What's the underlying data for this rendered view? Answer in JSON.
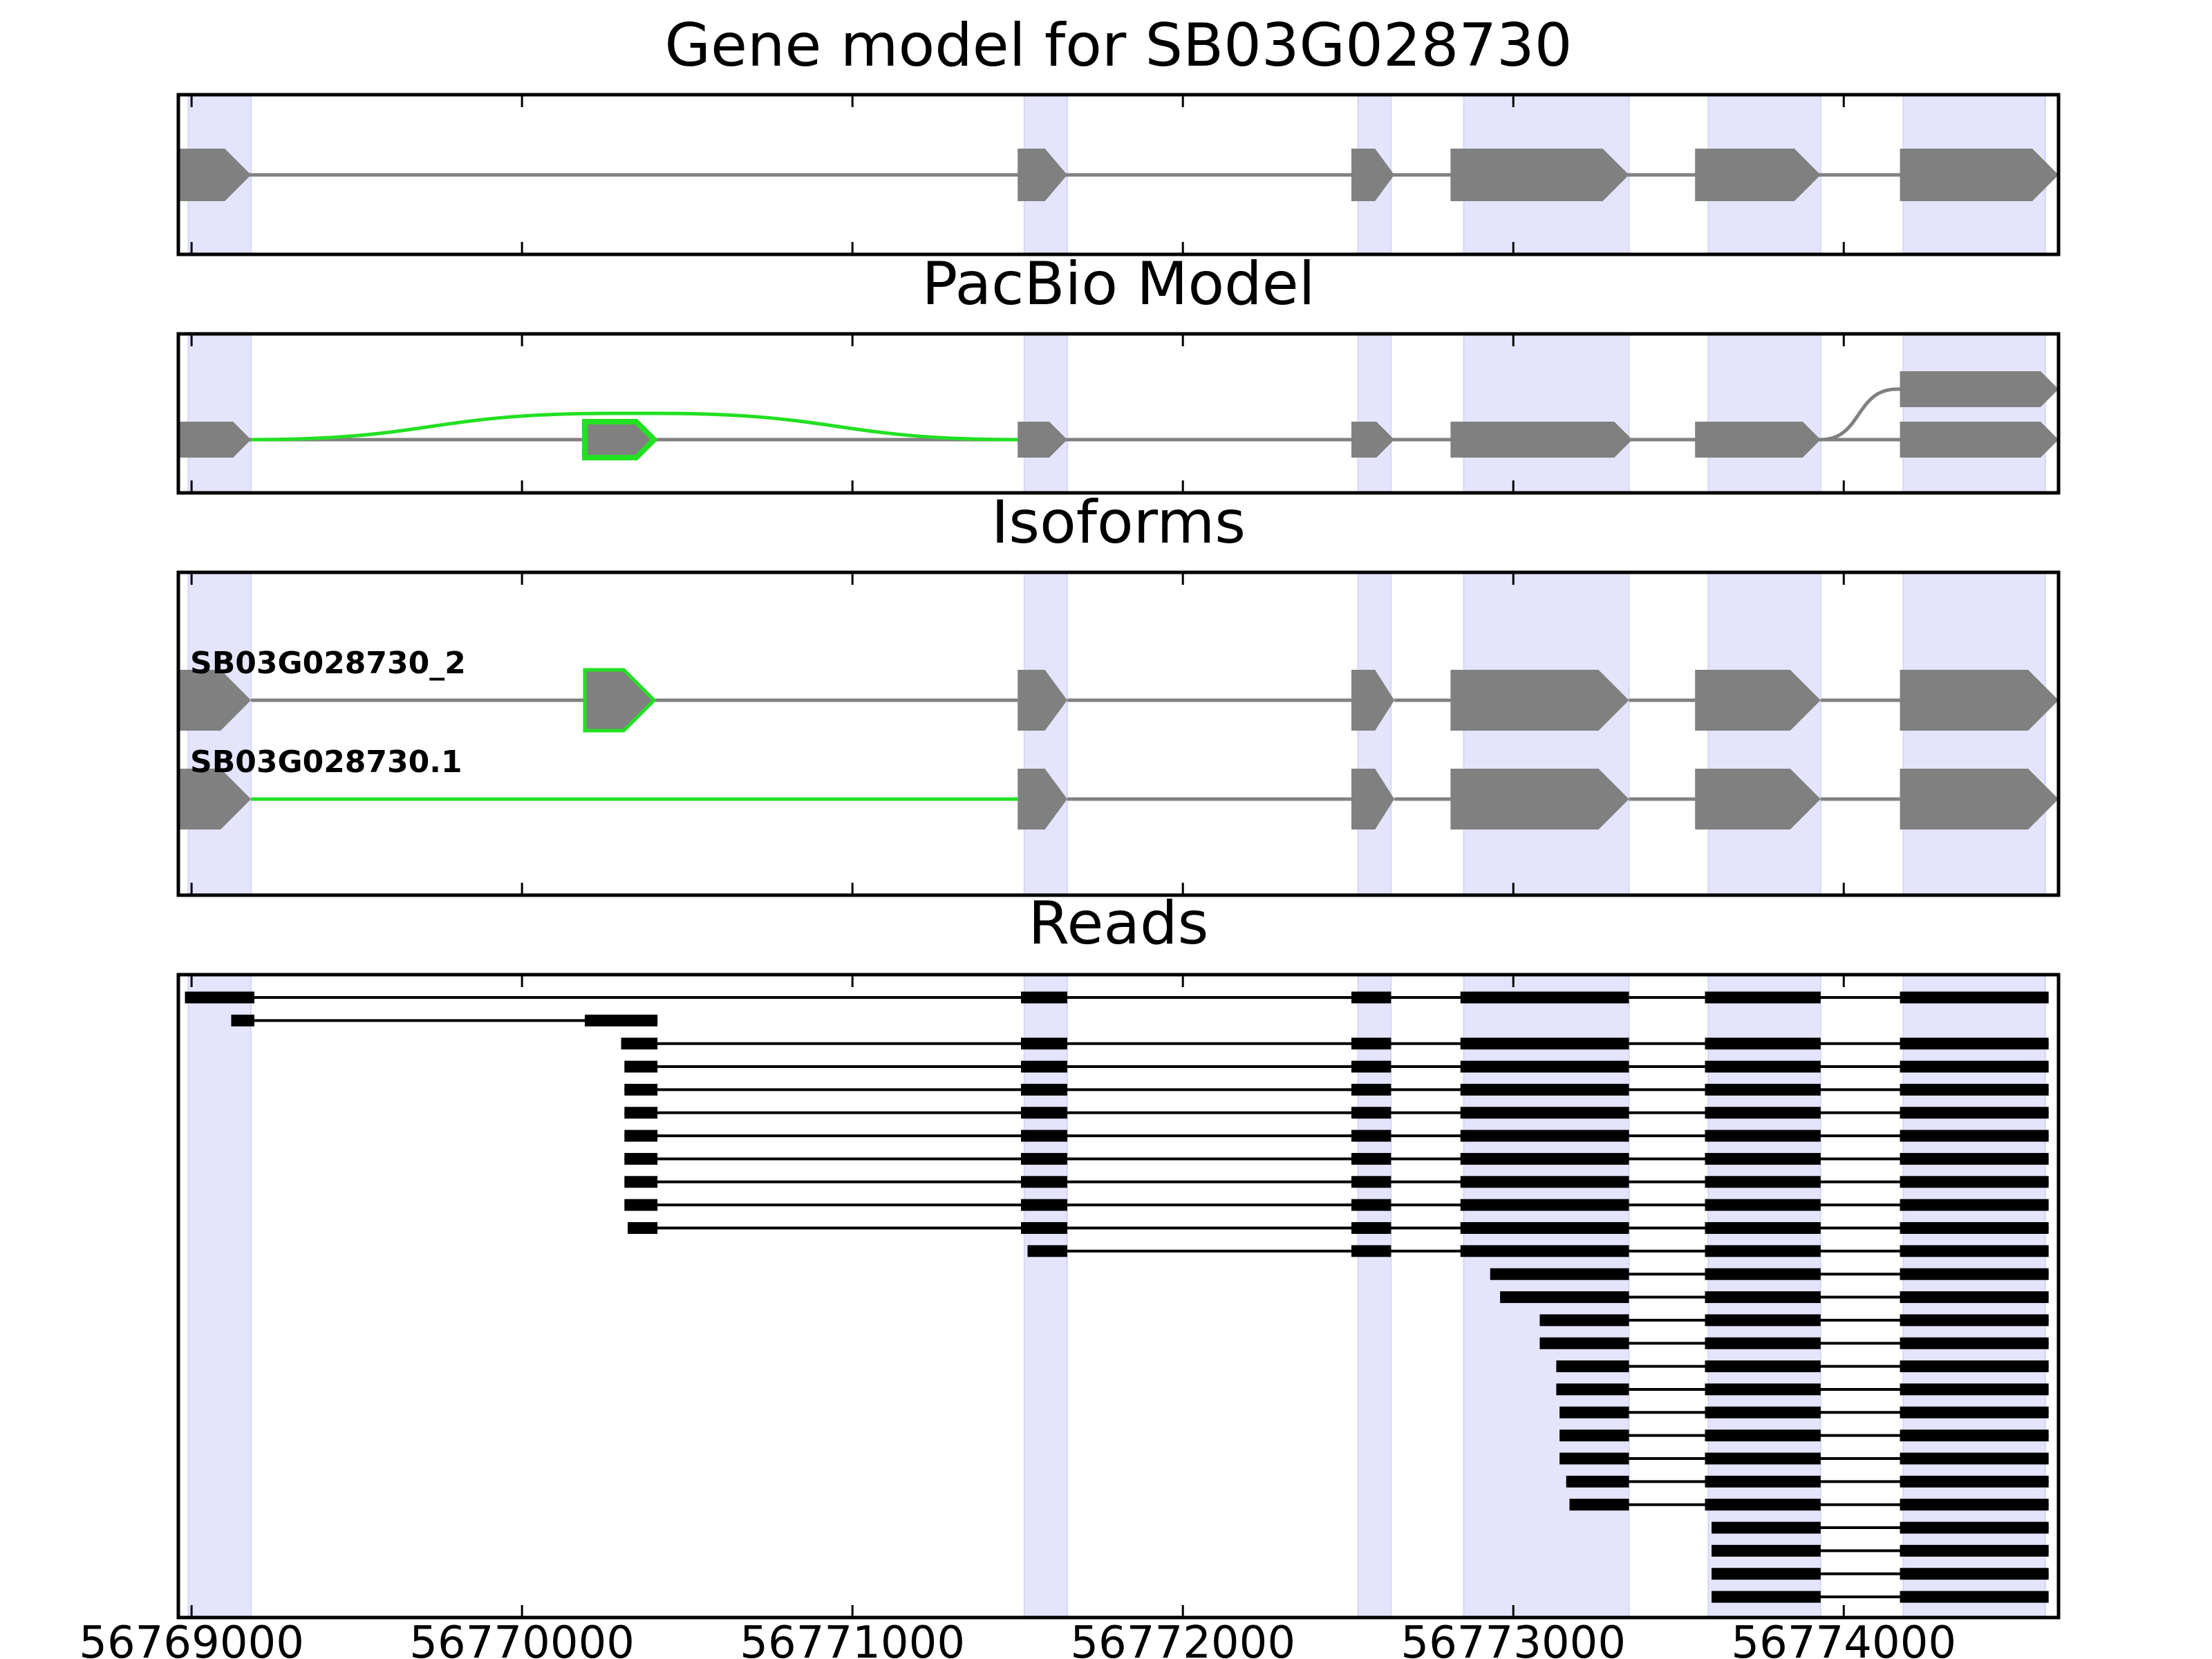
{
  "chart_data": {
    "type": "gene-track",
    "xlim": [
      56768960,
      56774650
    ],
    "x_ticks": [
      56769000,
      56770000,
      56771000,
      56772000,
      56773000,
      56774000
    ],
    "x_tick_labels": [
      "56769000",
      "56770000",
      "56771000",
      "56772000",
      "56773000",
      "56774000"
    ],
    "colors": {
      "highlight": "#e4e4fd",
      "exon": "#808080",
      "intron": "#808080",
      "alt": "#22e022",
      "read": "#000000"
    },
    "exon_regions": [
      [
        56768990,
        56769180
      ],
      [
        56771520,
        56771650
      ],
      [
        56772530,
        56772630
      ],
      [
        56772850,
        56773350
      ],
      [
        56773590,
        56773930
      ],
      [
        56774180,
        56774610
      ]
    ],
    "panels": {
      "gene_model": {
        "title": "Gene model for SB03G028730",
        "strand": "+",
        "exons": [
          [
            56768960,
            56769180
          ],
          [
            56771500,
            56771650
          ],
          [
            56772510,
            56772640
          ],
          [
            56772810,
            56773350
          ],
          [
            56773550,
            56773930
          ],
          [
            56774170,
            56774650
          ]
        ]
      },
      "pacbio_model": {
        "title": "PacBio Model",
        "main_exons": [
          [
            56768960,
            56769180
          ],
          [
            56771500,
            56771650
          ],
          [
            56772510,
            56772640
          ],
          [
            56772810,
            56773360
          ],
          [
            56773550,
            56773930
          ],
          [
            56774170,
            56774650
          ]
        ],
        "alt_exon": [
          56770190,
          56770400
        ],
        "alt_exon_shifted": [
          56774170,
          56774650
        ]
      },
      "isoforms": {
        "title": "Isoforms",
        "items": [
          {
            "name": "SB03G028730_2",
            "exons": [
              [
                56768960,
                56769180
              ],
              [
                56770190,
                56770400
              ],
              [
                56771500,
                56771650
              ],
              [
                56772510,
                56772640
              ],
              [
                56772810,
                56773350
              ],
              [
                56773550,
                56773930
              ],
              [
                56774170,
                56774650
              ]
            ],
            "highlight_exon": 1
          },
          {
            "name": "SB03G028730.1",
            "exons": [
              [
                56768960,
                56769180
              ],
              [
                56771500,
                56771650
              ],
              [
                56772510,
                56772640
              ],
              [
                56772810,
                56773350
              ],
              [
                56773550,
                56773930
              ],
              [
                56774170,
                56774650
              ]
            ],
            "highlight_intron": 0
          }
        ]
      },
      "reads": {
        "title": "Reads",
        "rows": [
          [
            [
              56768980,
              56769190
            ],
            [
              56771510,
              56771650
            ],
            [
              56772510,
              56772630
            ],
            [
              56772840,
              56773350
            ],
            [
              56773580,
              56773930
            ],
            [
              56774170,
              56774620
            ]
          ],
          [
            [
              56769120,
              56769190
            ],
            [
              56770190,
              56770410
            ]
          ],
          [
            [
              56770300,
              56770410
            ],
            [
              56771510,
              56771650
            ],
            [
              56772510,
              56772630
            ],
            [
              56772840,
              56773350
            ],
            [
              56773580,
              56773930
            ],
            [
              56774170,
              56774620
            ]
          ],
          [
            [
              56770310,
              56770410
            ],
            [
              56771510,
              56771650
            ],
            [
              56772510,
              56772630
            ],
            [
              56772840,
              56773350
            ],
            [
              56773580,
              56773930
            ],
            [
              56774170,
              56774620
            ]
          ],
          [
            [
              56770310,
              56770410
            ],
            [
              56771510,
              56771650
            ],
            [
              56772510,
              56772630
            ],
            [
              56772840,
              56773350
            ],
            [
              56773580,
              56773930
            ],
            [
              56774170,
              56774620
            ]
          ],
          [
            [
              56770310,
              56770410
            ],
            [
              56771510,
              56771650
            ],
            [
              56772510,
              56772630
            ],
            [
              56772840,
              56773350
            ],
            [
              56773580,
              56773930
            ],
            [
              56774170,
              56774620
            ]
          ],
          [
            [
              56770310,
              56770410
            ],
            [
              56771510,
              56771650
            ],
            [
              56772510,
              56772630
            ],
            [
              56772840,
              56773350
            ],
            [
              56773580,
              56773930
            ],
            [
              56774170,
              56774620
            ]
          ],
          [
            [
              56770310,
              56770410
            ],
            [
              56771510,
              56771650
            ],
            [
              56772510,
              56772630
            ],
            [
              56772840,
              56773350
            ],
            [
              56773580,
              56773930
            ],
            [
              56774170,
              56774620
            ]
          ],
          [
            [
              56770310,
              56770410
            ],
            [
              56771510,
              56771650
            ],
            [
              56772510,
              56772630
            ],
            [
              56772840,
              56773350
            ],
            [
              56773580,
              56773930
            ],
            [
              56774170,
              56774620
            ]
          ],
          [
            [
              56770310,
              56770410
            ],
            [
              56771510,
              56771650
            ],
            [
              56772510,
              56772630
            ],
            [
              56772840,
              56773350
            ],
            [
              56773580,
              56773930
            ],
            [
              56774170,
              56774620
            ]
          ],
          [
            [
              56770320,
              56770410
            ],
            [
              56771510,
              56771650
            ],
            [
              56772510,
              56772630
            ],
            [
              56772840,
              56773350
            ],
            [
              56773580,
              56773930
            ],
            [
              56774170,
              56774620
            ]
          ],
          [
            [
              56771530,
              56771650
            ],
            [
              56772510,
              56772630
            ],
            [
              56772840,
              56773350
            ],
            [
              56773580,
              56773930
            ],
            [
              56774170,
              56774620
            ]
          ],
          [
            [
              56772930,
              56773350
            ],
            [
              56773580,
              56773930
            ],
            [
              56774170,
              56774620
            ]
          ],
          [
            [
              56772960,
              56773350
            ],
            [
              56773580,
              56773930
            ],
            [
              56774170,
              56774620
            ]
          ],
          [
            [
              56773080,
              56773350
            ],
            [
              56773580,
              56773930
            ],
            [
              56774170,
              56774620
            ]
          ],
          [
            [
              56773080,
              56773350
            ],
            [
              56773580,
              56773930
            ],
            [
              56774170,
              56774620
            ]
          ],
          [
            [
              56773130,
              56773350
            ],
            [
              56773580,
              56773930
            ],
            [
              56774170,
              56774620
            ]
          ],
          [
            [
              56773130,
              56773350
            ],
            [
              56773580,
              56773930
            ],
            [
              56774170,
              56774620
            ]
          ],
          [
            [
              56773140,
              56773350
            ],
            [
              56773580,
              56773930
            ],
            [
              56774170,
              56774620
            ]
          ],
          [
            [
              56773140,
              56773350
            ],
            [
              56773580,
              56773930
            ],
            [
              56774170,
              56774620
            ]
          ],
          [
            [
              56773140,
              56773350
            ],
            [
              56773580,
              56773930
            ],
            [
              56774170,
              56774620
            ]
          ],
          [
            [
              56773160,
              56773350
            ],
            [
              56773580,
              56773930
            ],
            [
              56774170,
              56774620
            ]
          ],
          [
            [
              56773170,
              56773350
            ],
            [
              56773580,
              56773930
            ],
            [
              56774170,
              56774620
            ]
          ],
          [
            [
              56773600,
              56773930
            ],
            [
              56774170,
              56774620
            ]
          ],
          [
            [
              56773600,
              56773930
            ],
            [
              56774170,
              56774620
            ]
          ],
          [
            [
              56773600,
              56773930
            ],
            [
              56774170,
              56774620
            ]
          ],
          [
            [
              56773600,
              56773930
            ],
            [
              56774170,
              56774620
            ]
          ]
        ]
      }
    }
  }
}
